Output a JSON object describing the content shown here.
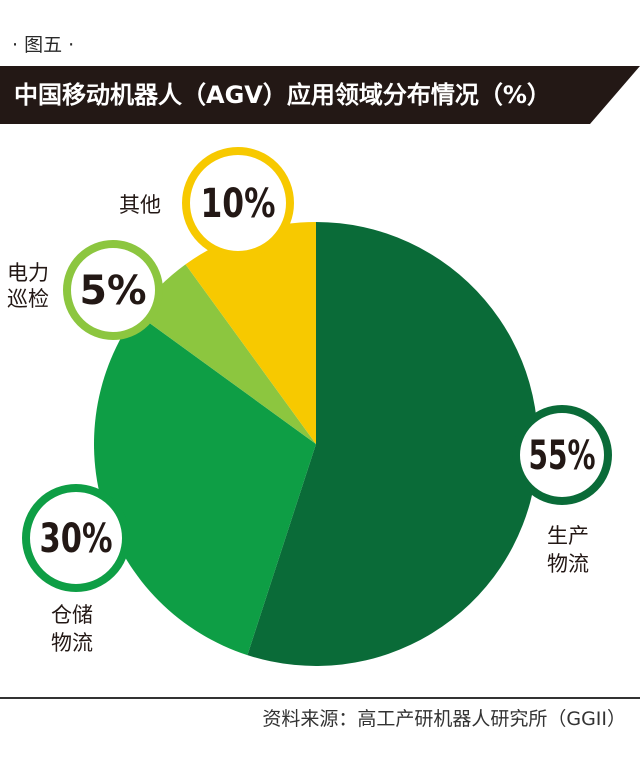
{
  "figure_label": "· 图五 ·",
  "title": "中国移动机器人（AGV）应用领域分布情况（%）",
  "source": "资料来源：高工产研机器人研究所（GGII）",
  "colors": {
    "title_bar": "#231815",
    "production_logistics": "#0a6b38",
    "warehouse_logistics": "#0e9e45",
    "power_inspection": "#8cc63f",
    "other": "#f7c900"
  },
  "chart_data": {
    "type": "pie",
    "title": "中国移动机器人（AGV）应用领域分布情况（%）",
    "unit": "%",
    "slices": [
      {
        "label": "生产物流",
        "label_lines": [
          "生产",
          "物流"
        ],
        "value": 55,
        "value_label": "55%",
        "color": "#0a6b38"
      },
      {
        "label": "仓储物流",
        "label_lines": [
          "仓储",
          "物流"
        ],
        "value": 30,
        "value_label": "30%",
        "color": "#0e9e45"
      },
      {
        "label": "电力巡检",
        "label_lines": [
          "电力",
          "巡检"
        ],
        "value": 5,
        "value_label": "5%",
        "color": "#8cc63f"
      },
      {
        "label": "其他",
        "label_lines": [
          "其他"
        ],
        "value": 10,
        "value_label": "10%",
        "color": "#f7c900"
      }
    ]
  }
}
